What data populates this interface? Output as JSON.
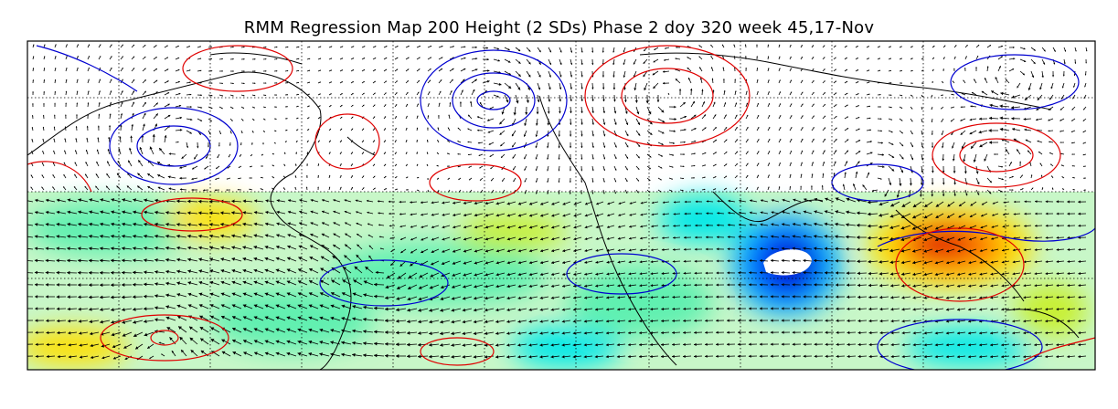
{
  "figure": {
    "title": "RMM Regression Map 200 Height (2 SDs) Phase 2 doy 320 week 45,17-Nov"
  },
  "map_style": {
    "positive_contour_color": "#e00000",
    "negative_contour_color": "#0000d0",
    "coastline_color": "#000000",
    "vector_color": "#000000",
    "fill_colormap": [
      "#ffffff",
      "#c8f7c8",
      "#60f0b0",
      "#00e8e8",
      "#00b0ff",
      "#0040ff",
      "#0000c8",
      "#c8f030",
      "#ffe000",
      "#ff8000",
      "#e00000"
    ]
  }
}
